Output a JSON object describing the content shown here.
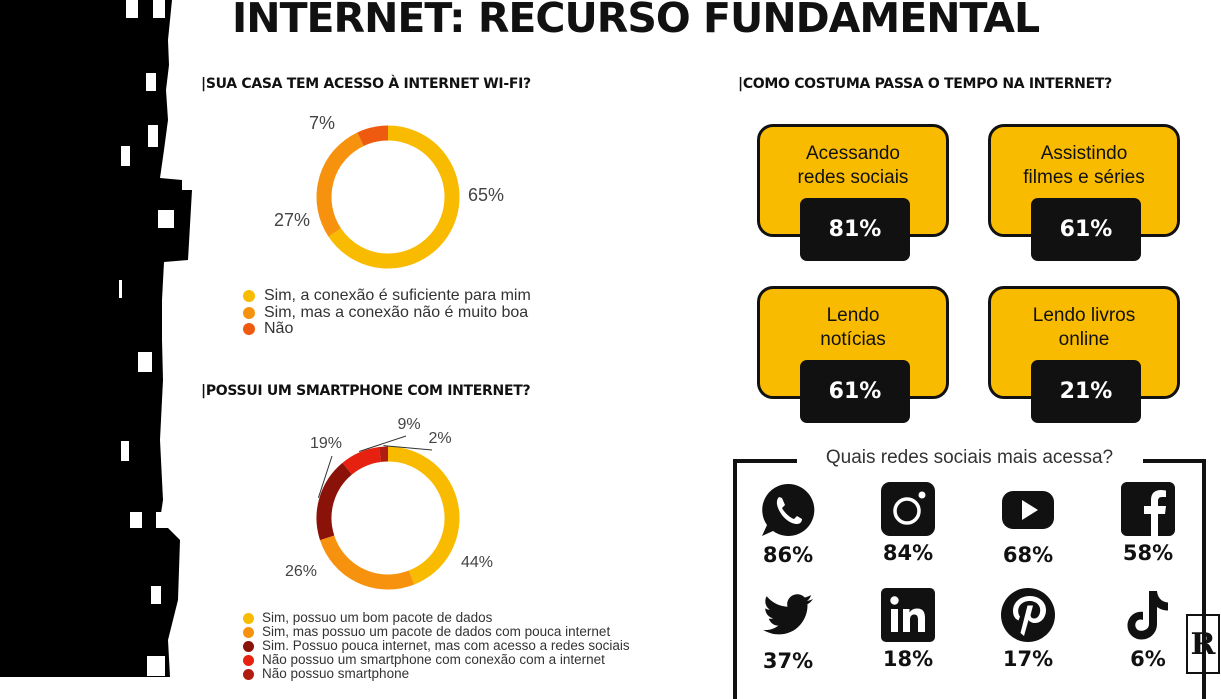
{
  "title": "INTERNET: RECURSO FUNDAMENTAL",
  "colors": {
    "yellow": "#f9bb00",
    "orange": "#f7920e",
    "red_orange": "#ee5a0f",
    "dark_red": "#8a1209",
    "red": "#e6210f",
    "black": "#111111"
  },
  "chart_data": [
    {
      "type": "pie",
      "title": "|SUA CASA TEM ACESSO À INTERNET WI-FI?",
      "series": [
        {
          "label": "Sim, a conexão é suficiente para mim",
          "value": 65,
          "value_label": "65%",
          "color": "#f9bb00"
        },
        {
          "label": "Sim, mas a conexão não é muito boa",
          "value": 27,
          "value_label": "27%",
          "color": "#f7920e"
        },
        {
          "label": "Não",
          "value": 7,
          "value_label": "7%",
          "color": "#ee5a0f"
        }
      ]
    },
    {
      "type": "pie",
      "title": "|POSSUI UM SMARTPHONE COM INTERNET?",
      "series": [
        {
          "label": "Sim, possuo um bom pacote de dados",
          "value": 44,
          "value_label": "44%",
          "color": "#f9bb00"
        },
        {
          "label": "Sim, mas possuo um pacote de dados com pouca internet",
          "value": 26,
          "value_label": "26%",
          "color": "#f7920e"
        },
        {
          "label": "Sim. Possuo pouca internet, mas com acesso a redes sociais",
          "value": 19,
          "value_label": "19%",
          "color": "#8a1209"
        },
        {
          "label": "Não possuo um smartphone com conexão com a internet",
          "value": 9,
          "value_label": "9%",
          "color": "#e6210f"
        },
        {
          "label": "Não possuo smartphone",
          "value": 2,
          "value_label": "2%",
          "color": "#b01d10"
        }
      ]
    },
    {
      "type": "table",
      "title": "|COMO COSTUMA PASSA O TEMPO NA INTERNET?",
      "items": [
        {
          "label": "Acessando\nredes sociais",
          "value": 81,
          "value_label": "81%"
        },
        {
          "label": "Assistindo\nfilmes e séries",
          "value": 61,
          "value_label": "61%"
        },
        {
          "label": "Lendo\nnotícias",
          "value": 61,
          "value_label": "61%"
        },
        {
          "label": "Lendo livros\nonline",
          "value": 21,
          "value_label": "21%"
        }
      ]
    },
    {
      "type": "table",
      "title": "Quais redes sociais mais acessa?",
      "items": [
        {
          "icon": "whatsapp-icon",
          "value": 86,
          "value_label": "86%"
        },
        {
          "icon": "instagram-icon",
          "value": 84,
          "value_label": "84%"
        },
        {
          "icon": "youtube-icon",
          "value": 68,
          "value_label": "68%"
        },
        {
          "icon": "facebook-icon",
          "value": 58,
          "value_label": "58%"
        },
        {
          "icon": "twitter-icon",
          "value": 37,
          "value_label": "37%"
        },
        {
          "icon": "linkedin-icon",
          "value": 18,
          "value_label": "18%"
        },
        {
          "icon": "pinterest-icon",
          "value": 17,
          "value_label": "17%"
        },
        {
          "icon": "tiktok-icon",
          "value": 6,
          "value_label": "6%"
        }
      ]
    }
  ],
  "logo_text": "R"
}
